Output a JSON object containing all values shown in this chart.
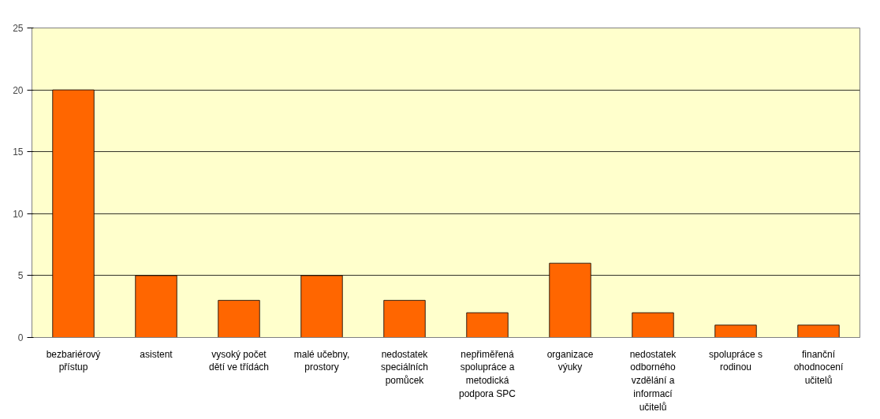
{
  "chart_data": {
    "type": "bar",
    "categories": [
      "bezbariérový přístup",
      "asistent",
      "vysoký počet dětí ve třídách",
      "malé učebny, prostory",
      "nedostatek speciálních pomůcek",
      "nepřiměřená spolupráce a metodická podpora SPC",
      "organizace výuky",
      "nedostatek odborného vzdělání a informací učitelů",
      "spolupráce s rodinou",
      "finanční ohodnocení učitelů"
    ],
    "values": [
      20,
      5,
      3,
      5,
      3,
      2,
      6,
      2,
      1,
      1
    ],
    "color": "#ff6600",
    "ylim": [
      0,
      25
    ],
    "yticks": [
      0,
      5,
      10,
      15,
      20,
      25
    ],
    "grid": "y"
  }
}
